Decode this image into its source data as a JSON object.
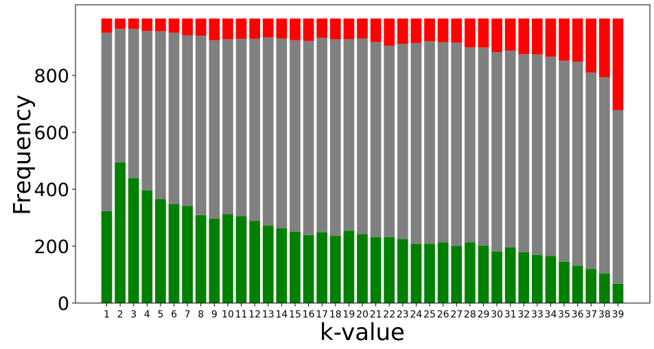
{
  "chart_data": {
    "type": "bar",
    "stacked": true,
    "title": "",
    "xlabel": "k-value",
    "ylabel": "Frequency",
    "ylim": [
      0,
      1000
    ],
    "yticks": [
      0,
      200,
      400,
      600,
      800
    ],
    "grid": false,
    "legend": "none",
    "categories": [
      "1",
      "2",
      "3",
      "4",
      "5",
      "6",
      "7",
      "8",
      "9",
      "10",
      "11",
      "12",
      "13",
      "14",
      "15",
      "16",
      "17",
      "18",
      "19",
      "20",
      "21",
      "22",
      "23",
      "24",
      "25",
      "26",
      "27",
      "28",
      "29",
      "30",
      "31",
      "32",
      "33",
      "34",
      "35",
      "36",
      "37",
      "38",
      "39"
    ],
    "series": [
      {
        "color": "#008000",
        "values": [
          323,
          494,
          439,
          396,
          365,
          348,
          341,
          309,
          297,
          312,
          305,
          288,
          272,
          263,
          251,
          239,
          249,
          236,
          254,
          242,
          232,
          232,
          225,
          208,
          208,
          213,
          200,
          213,
          202,
          181,
          196,
          179,
          169,
          165,
          145,
          131,
          120,
          104,
          68
        ]
      },
      {
        "color": "#808080",
        "values": [
          627,
          470,
          525,
          560,
          590,
          602,
          600,
          630,
          627,
          615,
          624,
          641,
          662,
          667,
          673,
          682,
          683,
          691,
          673,
          688,
          686,
          672,
          686,
          706,
          712,
          704,
          715,
          686,
          696,
          701,
          691,
          696,
          705,
          701,
          707,
          717,
          690,
          690,
          610
        ]
      },
      {
        "color": "#ff0000",
        "values": [
          50,
          36,
          36,
          44,
          45,
          50,
          59,
          61,
          76,
          73,
          71,
          71,
          66,
          70,
          76,
          79,
          68,
          73,
          73,
          70,
          82,
          96,
          89,
          86,
          80,
          83,
          85,
          101,
          102,
          118,
          113,
          125,
          126,
          134,
          148,
          152,
          190,
          206,
          322
        ]
      }
    ]
  }
}
